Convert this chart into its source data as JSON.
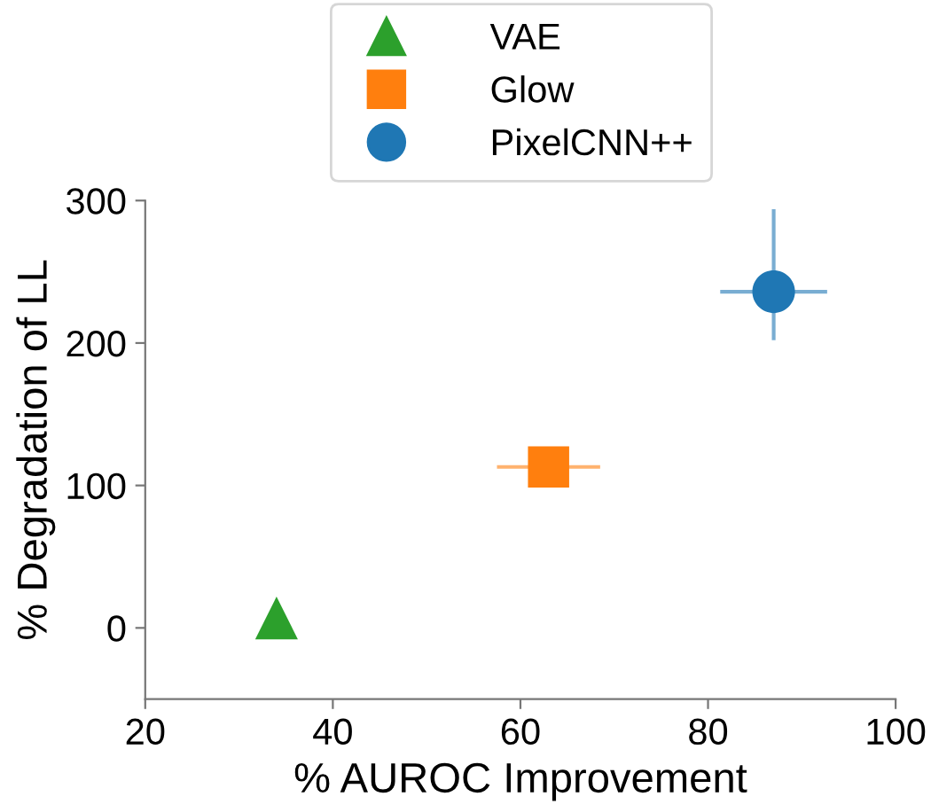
{
  "chart_data": {
    "type": "scatter",
    "xlabel": "% AUROC Improvement",
    "ylabel": "% Degradation of LL",
    "series": [
      {
        "name": "VAE",
        "color": "#2ca02c",
        "marker": "triangle",
        "x": [
          34
        ],
        "values": [
          7
        ]
      },
      {
        "name": "Glow",
        "color": "#ff7f0e",
        "marker": "square",
        "x": [
          63
        ],
        "values": [
          113
        ],
        "xerrors": [
          5.5
        ]
      },
      {
        "name": "PixelCNN++",
        "color": "#1f77b4",
        "marker": "circle",
        "x": [
          87
        ],
        "values": [
          236
        ],
        "xerrors": [
          5.7
        ],
        "errors": [
          [
            202,
            294
          ]
        ]
      }
    ],
    "xlim": [
      20,
      100
    ],
    "xticks": [
      20,
      40,
      60,
      80,
      100
    ],
    "ylim": [
      -50,
      300
    ],
    "yticks": [
      0,
      100,
      200,
      300
    ],
    "grid": false,
    "legend": "top"
  }
}
